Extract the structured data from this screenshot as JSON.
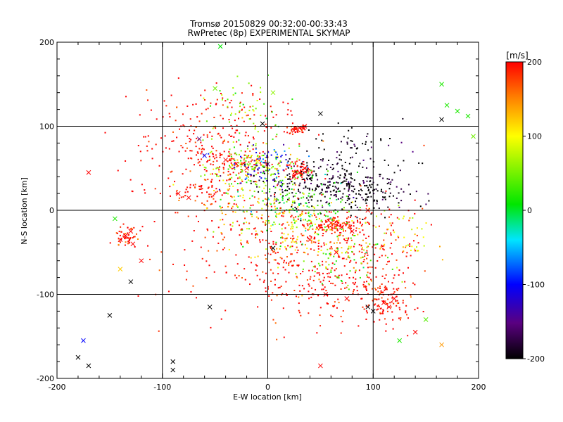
{
  "chart_data": {
    "type": "scatter",
    "title": "Tromsø 20150829 00:32:00-00:33:43",
    "subtitle": "RwPretec (8p) EXPERIMENTAL SKYMAP",
    "xlabel": "E-W location [km]",
    "ylabel": "N-S location [km]",
    "xlim": [
      -200,
      200
    ],
    "ylim": [
      -200,
      200
    ],
    "xticks": [
      "-200",
      "-100",
      "0",
      "100",
      "200"
    ],
    "yticks": [
      "-200",
      "-100",
      "0",
      "100",
      "200"
    ],
    "grid": true,
    "colorbar": {
      "label": "[m/s]",
      "range": [
        -200,
        200
      ],
      "ticks": [
        "-200",
        "-100",
        "0",
        "100",
        "200"
      ],
      "colormap": "black-purple-blue-cyan-green-yellow-red"
    },
    "cross_points": [
      {
        "x": -135,
        "y": -30,
        "v": 200
      },
      {
        "x": -130,
        "y": -25,
        "v": 200
      },
      {
        "x": -140,
        "y": -35,
        "v": 200
      },
      {
        "x": -128,
        "y": -40,
        "v": 200
      },
      {
        "x": -145,
        "y": -10,
        "v": 20
      },
      {
        "x": -120,
        "y": -60,
        "v": 200
      },
      {
        "x": -130,
        "y": -85,
        "v": -200
      },
      {
        "x": -180,
        "y": -175,
        "v": -200
      },
      {
        "x": -170,
        "y": -185,
        "v": -200
      },
      {
        "x": -150,
        "y": -125,
        "v": -200
      },
      {
        "x": -175,
        "y": -155,
        "v": -100
      },
      {
        "x": -90,
        "y": -180,
        "v": -200
      },
      {
        "x": -90,
        "y": -190,
        "v": -200
      },
      {
        "x": -45,
        "y": 195,
        "v": 10
      },
      {
        "x": -50,
        "y": 145,
        "v": 50
      },
      {
        "x": 5,
        "y": 140,
        "v": 60
      },
      {
        "x": 50,
        "y": 115,
        "v": -200
      },
      {
        "x": 30,
        "y": 98,
        "v": 200
      },
      {
        "x": 25,
        "y": 95,
        "v": 200
      },
      {
        "x": 35,
        "y": 100,
        "v": 200
      },
      {
        "x": -5,
        "y": 103,
        "v": -200
      },
      {
        "x": -65,
        "y": 85,
        "v": -150
      },
      {
        "x": -60,
        "y": 65,
        "v": -100
      },
      {
        "x": -30,
        "y": 55,
        "v": 200
      },
      {
        "x": -40,
        "y": 60,
        "v": 200
      },
      {
        "x": -20,
        "y": 50,
        "v": 200
      },
      {
        "x": -10,
        "y": 58,
        "v": 100
      },
      {
        "x": 0,
        "y": 55,
        "v": -150
      },
      {
        "x": -170,
        "y": 45,
        "v": 200
      },
      {
        "x": 30,
        "y": 45,
        "v": 200
      },
      {
        "x": 35,
        "y": 50,
        "v": 200
      },
      {
        "x": 25,
        "y": 40,
        "v": 200
      },
      {
        "x": 60,
        "y": -15,
        "v": 200
      },
      {
        "x": 70,
        "y": -20,
        "v": 200
      },
      {
        "x": 80,
        "y": -25,
        "v": 200
      },
      {
        "x": 95,
        "y": 0,
        "v": 200
      },
      {
        "x": 110,
        "y": -110,
        "v": 200
      },
      {
        "x": 115,
        "y": -115,
        "v": 200
      },
      {
        "x": 120,
        "y": -105,
        "v": 200
      },
      {
        "x": 100,
        "y": -120,
        "v": -200
      },
      {
        "x": 95,
        "y": -115,
        "v": -200
      },
      {
        "x": 125,
        "y": -155,
        "v": 20
      },
      {
        "x": 150,
        "y": -130,
        "v": 40
      },
      {
        "x": 165,
        "y": 150,
        "v": 20
      },
      {
        "x": 170,
        "y": 125,
        "v": 20
      },
      {
        "x": 180,
        "y": 118,
        "v": 20
      },
      {
        "x": 190,
        "y": 112,
        "v": 20
      },
      {
        "x": 195,
        "y": 88,
        "v": 50
      },
      {
        "x": 165,
        "y": 108,
        "v": -200
      },
      {
        "x": -140,
        "y": -70,
        "v": 120
      },
      {
        "x": -55,
        "y": -115,
        "v": -200
      },
      {
        "x": 65,
        "y": -50,
        "v": 200
      },
      {
        "x": 40,
        "y": -35,
        "v": 200
      },
      {
        "x": 5,
        "y": -45,
        "v": -200
      },
      {
        "x": 50,
        "y": -185,
        "v": 200
      },
      {
        "x": -75,
        "y": 15,
        "v": 200
      },
      {
        "x": -85,
        "y": 20,
        "v": 200
      },
      {
        "x": 140,
        "y": -145,
        "v": 200
      },
      {
        "x": 55,
        "y": -100,
        "v": 200
      },
      {
        "x": 75,
        "y": -105,
        "v": 200
      },
      {
        "x": 165,
        "y": -160,
        "v": 140
      }
    ],
    "point_clusters": [
      {
        "cx": -30,
        "cy": 55,
        "sx": 20,
        "sy": 10,
        "n": 120,
        "v": 200
      },
      {
        "cx": -15,
        "cy": 52,
        "sx": 22,
        "sy": 14,
        "n": 140,
        "v": 60
      },
      {
        "cx": -5,
        "cy": 55,
        "sx": 18,
        "sy": 12,
        "n": 70,
        "v": -100
      },
      {
        "cx": -65,
        "cy": 25,
        "sx": 18,
        "sy": 8,
        "n": 60,
        "v": 200
      },
      {
        "cx": 30,
        "cy": 47,
        "sx": 7,
        "sy": 6,
        "n": 70,
        "v": 200
      },
      {
        "cx": 28,
        "cy": 97,
        "sx": 5,
        "sy": 3,
        "n": 40,
        "v": 200
      },
      {
        "cx": 45,
        "cy": 35,
        "sx": 30,
        "sy": 15,
        "n": 200,
        "v": -200
      },
      {
        "cx": 85,
        "cy": 20,
        "sx": 25,
        "sy": 12,
        "n": 160,
        "v": -200
      },
      {
        "cx": 65,
        "cy": -17,
        "sx": 12,
        "sy": 5,
        "n": 110,
        "v": 200
      },
      {
        "cx": 25,
        "cy": 5,
        "sx": 30,
        "sy": 20,
        "n": 160,
        "v": 20
      },
      {
        "cx": 40,
        "cy": -25,
        "sx": 30,
        "sy": 20,
        "n": 120,
        "v": 110
      },
      {
        "cx": 40,
        "cy": -70,
        "sx": 40,
        "sy": 30,
        "n": 280,
        "v": 200
      },
      {
        "cx": 0,
        "cy": -20,
        "sx": 35,
        "sy": 25,
        "n": 110,
        "v": 200
      },
      {
        "cx": -10,
        "cy": 5,
        "sx": 25,
        "sy": 15,
        "n": 80,
        "v": 120
      },
      {
        "cx": -40,
        "cy": 110,
        "sx": 40,
        "sy": 20,
        "n": 120,
        "v": 200
      },
      {
        "cx": -20,
        "cy": 120,
        "sx": 25,
        "sy": 15,
        "n": 50,
        "v": 60
      },
      {
        "cx": -60,
        "cy": 70,
        "sx": 15,
        "sy": 20,
        "n": 60,
        "v": 200
      },
      {
        "cx": -100,
        "cy": 60,
        "sx": 20,
        "sy": 25,
        "n": 40,
        "v": 200
      },
      {
        "cx": -133,
        "cy": -32,
        "sx": 6,
        "sy": 6,
        "n": 55,
        "v": 200
      },
      {
        "cx": 115,
        "cy": -110,
        "sx": 12,
        "sy": 14,
        "n": 90,
        "v": 200
      },
      {
        "cx": 110,
        "cy": -30,
        "sx": 20,
        "sy": 25,
        "n": 70,
        "v": 200
      },
      {
        "cx": 130,
        "cy": -30,
        "sx": 15,
        "sy": 20,
        "n": 40,
        "v": 100
      },
      {
        "cx": 80,
        "cy": -90,
        "sx": 25,
        "sy": 20,
        "n": 90,
        "v": 200
      },
      {
        "cx": 70,
        "cy": -60,
        "sx": 20,
        "sy": 15,
        "n": 60,
        "v": 40
      },
      {
        "cx": 95,
        "cy": 55,
        "sx": 25,
        "sy": 25,
        "n": 50,
        "v": -200
      },
      {
        "cx": 80,
        "cy": 85,
        "sx": 25,
        "sy": 10,
        "n": 25,
        "v": -200
      },
      {
        "cx": -70,
        "cy": -50,
        "sx": 25,
        "sy": 40,
        "n": 30,
        "v": 200
      }
    ]
  }
}
